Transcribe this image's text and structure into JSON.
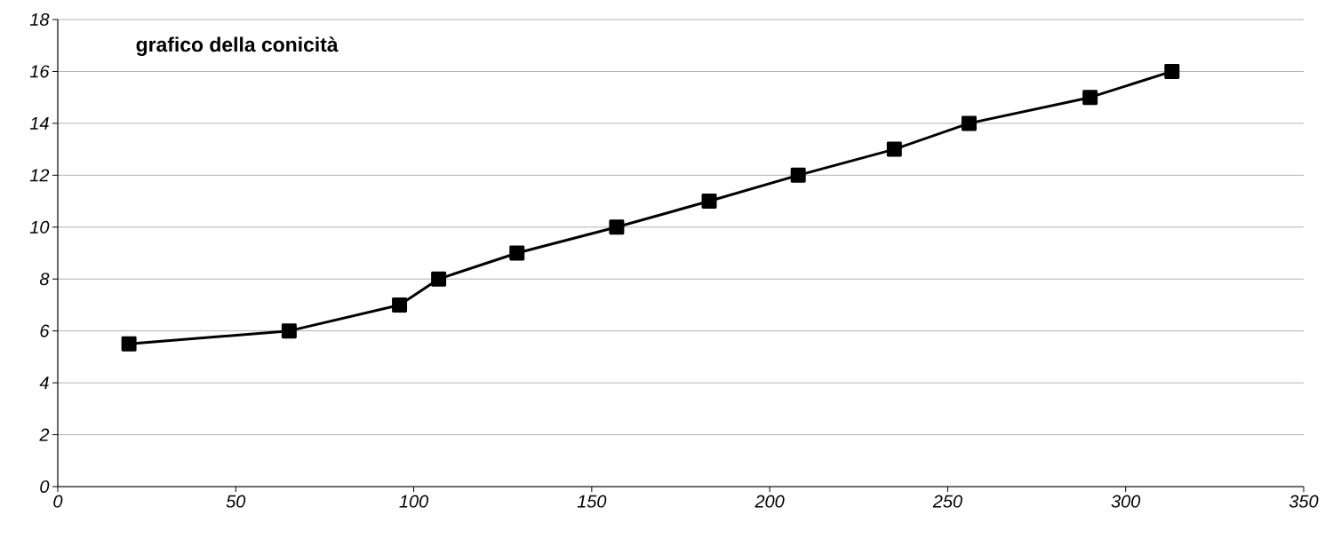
{
  "chart_data": {
    "type": "line",
    "title": "grafico della conicità",
    "x": [
      20,
      65,
      96,
      107,
      129,
      157,
      183,
      208,
      235,
      256,
      290,
      313
    ],
    "values": [
      5.5,
      6,
      7,
      8,
      9,
      10,
      11,
      12,
      13,
      14,
      15,
      16
    ],
    "color": "#000000",
    "marker": "square",
    "line_style": "solid",
    "grid": "y",
    "xlim": [
      0,
      350
    ],
    "ylim": [
      0,
      18
    ],
    "xticks": [
      0,
      50,
      100,
      150,
      200,
      250,
      300,
      350
    ],
    "yticks": [
      0,
      2,
      4,
      6,
      8,
      10,
      12,
      14,
      16,
      18
    ]
  }
}
